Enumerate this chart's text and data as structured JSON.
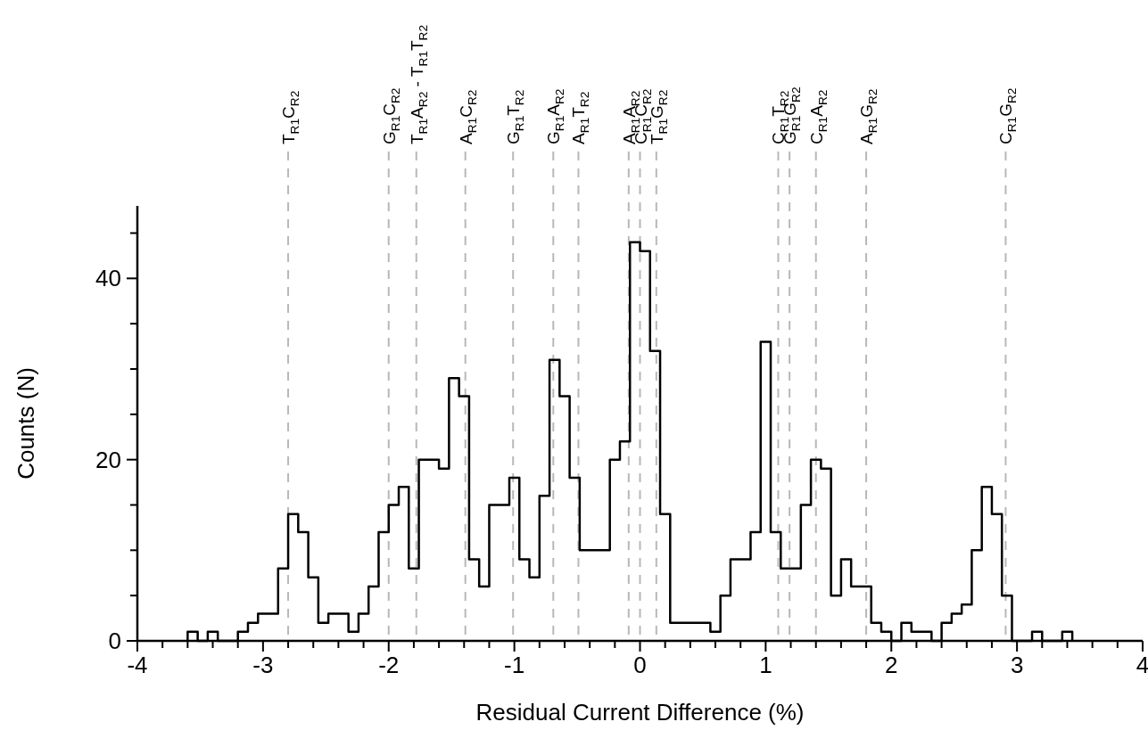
{
  "chart_data": {
    "type": "histogram",
    "xlabel": "Residual Current Difference (%)",
    "ylabel": "Counts (N)",
    "color": "#000000",
    "bins": [
      -3.6,
      -3.52,
      -3.44,
      -3.36,
      -3.28,
      -3.2,
      -3.12,
      -3.04,
      -2.96,
      -2.88,
      -2.8,
      -2.72,
      -2.64,
      -2.56,
      -2.48,
      -2.4,
      -2.32,
      -2.24,
      -2.16,
      -2.08,
      -2.0,
      -1.92,
      -1.84,
      -1.76,
      -1.68,
      -1.6,
      -1.52,
      -1.44,
      -1.36,
      -1.28,
      -1.2,
      -1.12,
      -1.04,
      -0.96,
      -0.88,
      -0.8,
      -0.72,
      -0.64,
      -0.56,
      -0.48,
      -0.4,
      -0.32,
      -0.24,
      -0.16,
      -0.08,
      0.0,
      0.08,
      0.16,
      0.24,
      0.32,
      0.4,
      0.48,
      0.56,
      0.64,
      0.72,
      0.8,
      0.88,
      0.96,
      1.04,
      1.12,
      1.2,
      1.28,
      1.36,
      1.44,
      1.52,
      1.6,
      1.68,
      1.76,
      1.84,
      1.92,
      2.0,
      2.08,
      2.16,
      2.24,
      2.32,
      2.4,
      2.48,
      2.56,
      2.64,
      2.72,
      2.8,
      2.88,
      2.96,
      3.04,
      3.12,
      3.2,
      3.28,
      3.36,
      3.44
    ],
    "values": [
      1,
      0,
      1,
      0,
      0,
      1,
      2,
      3,
      3,
      8,
      14,
      12,
      7,
      2,
      3,
      3,
      1,
      3,
      6,
      12,
      15,
      17,
      8,
      20,
      20,
      19,
      29,
      27,
      9,
      6,
      15,
      15,
      18,
      9,
      7,
      16,
      31,
      27,
      18,
      10,
      10,
      10,
      20,
      22,
      44,
      43,
      32,
      14,
      2,
      2,
      2,
      2,
      1,
      5,
      9,
      9,
      12,
      33,
      12,
      8,
      8,
      15,
      20,
      19,
      5,
      9,
      6,
      6,
      2,
      1,
      0,
      2,
      1,
      1,
      0,
      2,
      3,
      4,
      10,
      17,
      14,
      5,
      0,
      0,
      1,
      0,
      0,
      1
    ],
    "xlim": [
      -4,
      4
    ],
    "xticks": [
      -4,
      {
        "value": -3.8,
        "label": null
      },
      {
        "value": -3.6,
        "label": null
      },
      {
        "value": -3.4,
        "label": null
      },
      {
        "value": -3.2,
        "label": null
      },
      -3,
      {
        "value": -2.8,
        "label": null
      },
      {
        "value": -2.6,
        "label": null
      },
      {
        "value": -2.4,
        "label": null
      },
      {
        "value": -2.2,
        "label": null
      },
      -2,
      {
        "value": -1.8,
        "label": null
      },
      {
        "value": -1.6,
        "label": null
      },
      {
        "value": -1.4,
        "label": null
      },
      {
        "value": -1.2,
        "label": null
      },
      -1,
      {
        "value": -0.8,
        "label": null
      },
      {
        "value": -0.6,
        "label": null
      },
      {
        "value": -0.4,
        "label": null
      },
      {
        "value": -0.2,
        "label": null
      },
      0,
      {
        "value": 0.2,
        "label": null
      },
      {
        "value": 0.4,
        "label": null
      },
      {
        "value": 0.6,
        "label": null
      },
      {
        "value": 0.8,
        "label": null
      },
      1,
      {
        "value": 1.2,
        "label": null
      },
      {
        "value": 1.4,
        "label": null
      },
      {
        "value": 1.6,
        "label": null
      },
      {
        "value": 1.8,
        "label": null
      },
      2,
      {
        "value": 2.2,
        "label": null
      },
      {
        "value": 2.4,
        "label": null
      },
      {
        "value": 2.6,
        "label": null
      },
      {
        "value": 2.8,
        "label": null
      },
      3,
      {
        "value": 3.2,
        "label": null
      },
      {
        "value": 3.4,
        "label": null
      },
      {
        "value": 3.6,
        "label": null
      },
      {
        "value": 3.8,
        "label": null
      },
      4
    ],
    "ylim": [
      0,
      48
    ],
    "yticks": [
      0,
      {
        "value": 5,
        "label": null
      },
      {
        "value": 10,
        "label": null
      },
      {
        "value": 15,
        "label": null
      },
      20,
      {
        "value": 25,
        "label": null
      },
      {
        "value": 30,
        "label": null
      },
      {
        "value": 35,
        "label": null
      },
      40,
      {
        "value": 45,
        "label": null
      }
    ],
    "ref_lines": [
      {
        "axis": "x",
        "value": -2.8,
        "label": "T$_{R1}$C$_{R2}$",
        "color": "#b8b8b8",
        "line_style": "dashed"
      },
      {
        "axis": "x",
        "value": -2.0,
        "label": "G$_{R1}$C$_{R2}$",
        "color": "#b8b8b8",
        "line_style": "dashed"
      },
      {
        "axis": "x",
        "value": -1.78,
        "label": "T$_{R1}$A$_{R2}$ - T$_{R1}$T$_{R2}$",
        "color": "#b8b8b8",
        "line_style": "dashed"
      },
      {
        "axis": "x",
        "value": -1.39,
        "label": "A$_{R1}$C$_{R2}$",
        "color": "#b8b8b8",
        "line_style": "dashed"
      },
      {
        "axis": "x",
        "value": -1.01,
        "label": "G$_{R1}$T$_{R2}$",
        "color": "#b8b8b8",
        "line_style": "dashed"
      },
      {
        "axis": "x",
        "value": -0.69,
        "label": "G$_{R1}$A$_{R2}$",
        "color": "#b8b8b8",
        "line_style": "dashed"
      },
      {
        "axis": "x",
        "value": -0.49,
        "label": "A$_{R1}$T$_{R2}$",
        "color": "#b8b8b8",
        "line_style": "dashed"
      },
      {
        "axis": "x",
        "value": -0.09,
        "label": "A$_{R1}$A$_{R2}$",
        "color": "#b8b8b8",
        "line_style": "dashed"
      },
      {
        "axis": "x",
        "value": 0.0,
        "label": "C$_{R1}$C$_{R2}$",
        "color": "#b8b8b8",
        "line_style": "dashed"
      },
      {
        "axis": "x",
        "value": 0.13,
        "label": "T$_{R1}$G$_{R2}$",
        "color": "#b8b8b8",
        "line_style": "dashed"
      },
      {
        "axis": "x",
        "value": 1.1,
        "label": "C$_{R1}$T$_{R2}$",
        "color": "#b8b8b8",
        "line_style": "dashed"
      },
      {
        "axis": "x",
        "value": 1.19,
        "label": "G$_{R1}$G$_{R2}$",
        "color": "#b8b8b8",
        "line_style": "dashed"
      },
      {
        "axis": "x",
        "value": 1.4,
        "label": "C$_{R1}$A$_{R2}$",
        "color": "#b8b8b8",
        "line_style": "dashed"
      },
      {
        "axis": "x",
        "value": 1.8,
        "label": "A$_{R1}$G$_{R2}$",
        "color": "#b8b8b8",
        "line_style": "dashed"
      },
      {
        "axis": "x",
        "value": 2.91,
        "label": "C$_{R1}$G$_{R2}$",
        "color": "#b8b8b8",
        "line_style": "dashed"
      }
    ]
  }
}
